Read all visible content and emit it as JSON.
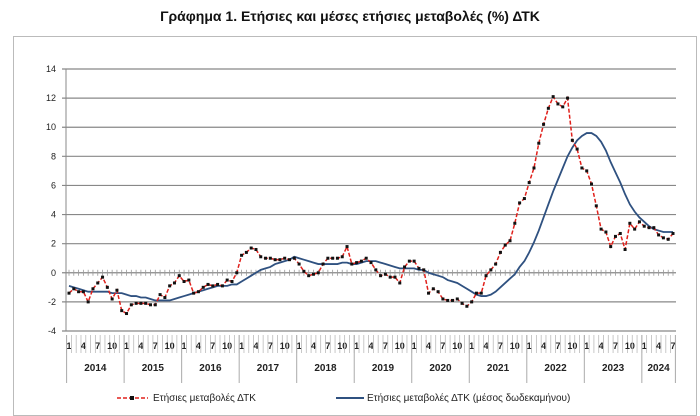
{
  "chart_data": {
    "type": "line",
    "title": "Γράφημα 1. Ετήσιες και μέσες ετήσιες μεταβολές (%) ΔΤΚ",
    "xlabel": "",
    "ylabel": "",
    "ylim": [
      -4,
      14
    ],
    "yticks": [
      -4,
      -2,
      0,
      2,
      4,
      6,
      8,
      10,
      12,
      14
    ],
    "month_labels": [
      "1",
      "4",
      "7",
      "10"
    ],
    "years": [
      "2014",
      "2015",
      "2016",
      "2017",
      "2018",
      "2019",
      "2020",
      "2021",
      "2022",
      "2023",
      "2024"
    ],
    "start": "2014-01",
    "end": "2024-07",
    "grid": true,
    "legend_position": "bottom",
    "series": [
      {
        "name": "Ετήσιες μεταβολές ΔΤΚ",
        "color": "#e0201b",
        "style": "dashed-markers",
        "values": [
          -1.4,
          -1.1,
          -1.3,
          -1.3,
          -2.0,
          -1.1,
          -0.7,
          -0.3,
          -1.0,
          -1.8,
          -1.2,
          -2.6,
          -2.8,
          -2.2,
          -2.1,
          -2.1,
          -2.1,
          -2.2,
          -2.2,
          -1.5,
          -1.7,
          -0.9,
          -0.7,
          -0.2,
          -0.6,
          -0.5,
          -1.4,
          -1.3,
          -1.0,
          -0.8,
          -0.9,
          -0.8,
          -0.9,
          -0.5,
          -0.6,
          0.0,
          1.2,
          1.4,
          1.7,
          1.6,
          1.1,
          1.0,
          1.0,
          0.9,
          0.9,
          1.0,
          0.9,
          1.0,
          0.6,
          0.1,
          -0.2,
          -0.1,
          0.0,
          0.6,
          1.0,
          1.0,
          1.0,
          1.1,
          1.8,
          0.6,
          0.7,
          0.8,
          1.0,
          0.7,
          0.2,
          -0.2,
          -0.1,
          -0.3,
          -0.3,
          -0.7,
          0.4,
          0.8,
          0.8,
          0.3,
          0.2,
          -1.4,
          -1.1,
          -1.3,
          -1.8,
          -1.9,
          -1.9,
          -1.8,
          -2.1,
          -2.3,
          -2.0,
          -1.4,
          -1.4,
          -0.2,
          0.2,
          0.6,
          1.4,
          1.9,
          2.2,
          3.4,
          4.8,
          5.1,
          6.2,
          7.2,
          8.9,
          10.2,
          11.3,
          12.1,
          11.6,
          11.4,
          12.0,
          9.1,
          8.5,
          7.2,
          7.0,
          6.1,
          4.6,
          3.0,
          2.8,
          1.8,
          2.5,
          2.7,
          1.6,
          3.4,
          3.0,
          3.5,
          3.2,
          3.1,
          3.1,
          2.6,
          2.4,
          2.3,
          2.7
        ]
      },
      {
        "name": "Ετήσιες μεταβολές ΔΤΚ (μέσος δωδεκαμήνου)",
        "color": "#2f5180",
        "style": "solid",
        "values": [
          -0.9,
          -1.0,
          -1.1,
          -1.2,
          -1.3,
          -1.3,
          -1.3,
          -1.3,
          -1.3,
          -1.4,
          -1.4,
          -1.4,
          -1.5,
          -1.6,
          -1.6,
          -1.7,
          -1.7,
          -1.8,
          -1.9,
          -1.9,
          -1.9,
          -1.9,
          -1.8,
          -1.7,
          -1.6,
          -1.5,
          -1.4,
          -1.3,
          -1.2,
          -1.1,
          -1.0,
          -0.9,
          -0.9,
          -0.9,
          -0.8,
          -0.8,
          -0.6,
          -0.4,
          -0.2,
          0.0,
          0.2,
          0.3,
          0.4,
          0.6,
          0.7,
          0.8,
          0.9,
          1.1,
          1.0,
          0.9,
          0.8,
          0.7,
          0.6,
          0.6,
          0.6,
          0.6,
          0.6,
          0.7,
          0.7,
          0.6,
          0.6,
          0.7,
          0.8,
          0.8,
          0.8,
          0.7,
          0.6,
          0.5,
          0.4,
          0.3,
          0.3,
          0.3,
          0.3,
          0.2,
          0.2,
          0.0,
          -0.1,
          -0.2,
          -0.3,
          -0.5,
          -0.6,
          -0.7,
          -0.9,
          -1.1,
          -1.3,
          -1.5,
          -1.6,
          -1.6,
          -1.5,
          -1.3,
          -1.0,
          -0.7,
          -0.4,
          -0.1,
          0.4,
          0.8,
          1.4,
          2.1,
          2.9,
          3.8,
          4.7,
          5.6,
          6.4,
          7.2,
          8.0,
          8.6,
          9.1,
          9.4,
          9.6,
          9.6,
          9.4,
          9.0,
          8.4,
          7.6,
          6.9,
          6.2,
          5.4,
          4.7,
          4.2,
          3.8,
          3.5,
          3.2,
          3.0,
          2.9,
          2.8,
          2.8,
          2.8
        ]
      }
    ]
  }
}
